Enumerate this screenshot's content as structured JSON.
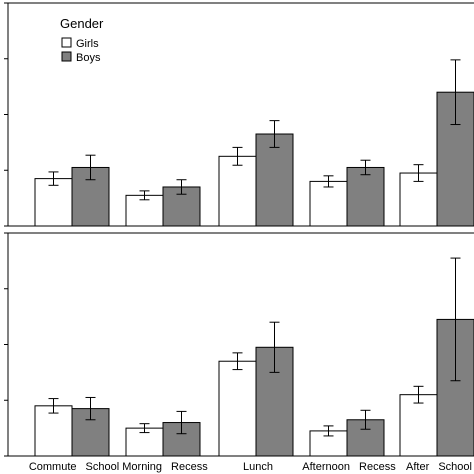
{
  "chart_data": [
    {
      "type": "bar",
      "categories": [
        "Commute School",
        "Morning Recess",
        "Lunch",
        "Afternoon Recess",
        "After School"
      ],
      "series": [
        {
          "name": "Girls",
          "values": [
            8.5,
            5.5,
            12.5,
            8.0,
            9.5
          ],
          "error": [
            1.2,
            0.8,
            1.6,
            1.0,
            1.5
          ],
          "color": "#ffffff"
        },
        {
          "name": "Boys",
          "values": [
            10.5,
            7.0,
            16.5,
            10.5,
            24.0
          ],
          "error": [
            2.2,
            1.3,
            2.4,
            1.3,
            5.8
          ],
          "color": "#808080"
        }
      ],
      "ylim": [
        0,
        40
      ],
      "legend": {
        "title": "Gender",
        "placement": "top-left"
      },
      "xlabel": "",
      "ylabel": ""
    },
    {
      "type": "bar",
      "categories": [
        "Commute School",
        "Morning Recess",
        "Lunch",
        "Afternoon Recess",
        "After School"
      ],
      "series": [
        {
          "name": "Girls",
          "values": [
            9.0,
            5.0,
            17.0,
            4.5,
            11.0
          ],
          "error": [
            1.3,
            0.8,
            1.5,
            0.9,
            1.5
          ],
          "color": "#ffffff"
        },
        {
          "name": "Boys",
          "values": [
            8.5,
            6.0,
            19.5,
            6.5,
            24.5
          ],
          "error": [
            2.0,
            2.0,
            4.5,
            1.7,
            11.0
          ],
          "color": "#808080"
        }
      ],
      "ylim": [
        0,
        40
      ],
      "xlabel": "",
      "ylabel": ""
    }
  ],
  "colors": {
    "girls": "#ffffff",
    "boys": "#808080",
    "frame": "#000000"
  }
}
